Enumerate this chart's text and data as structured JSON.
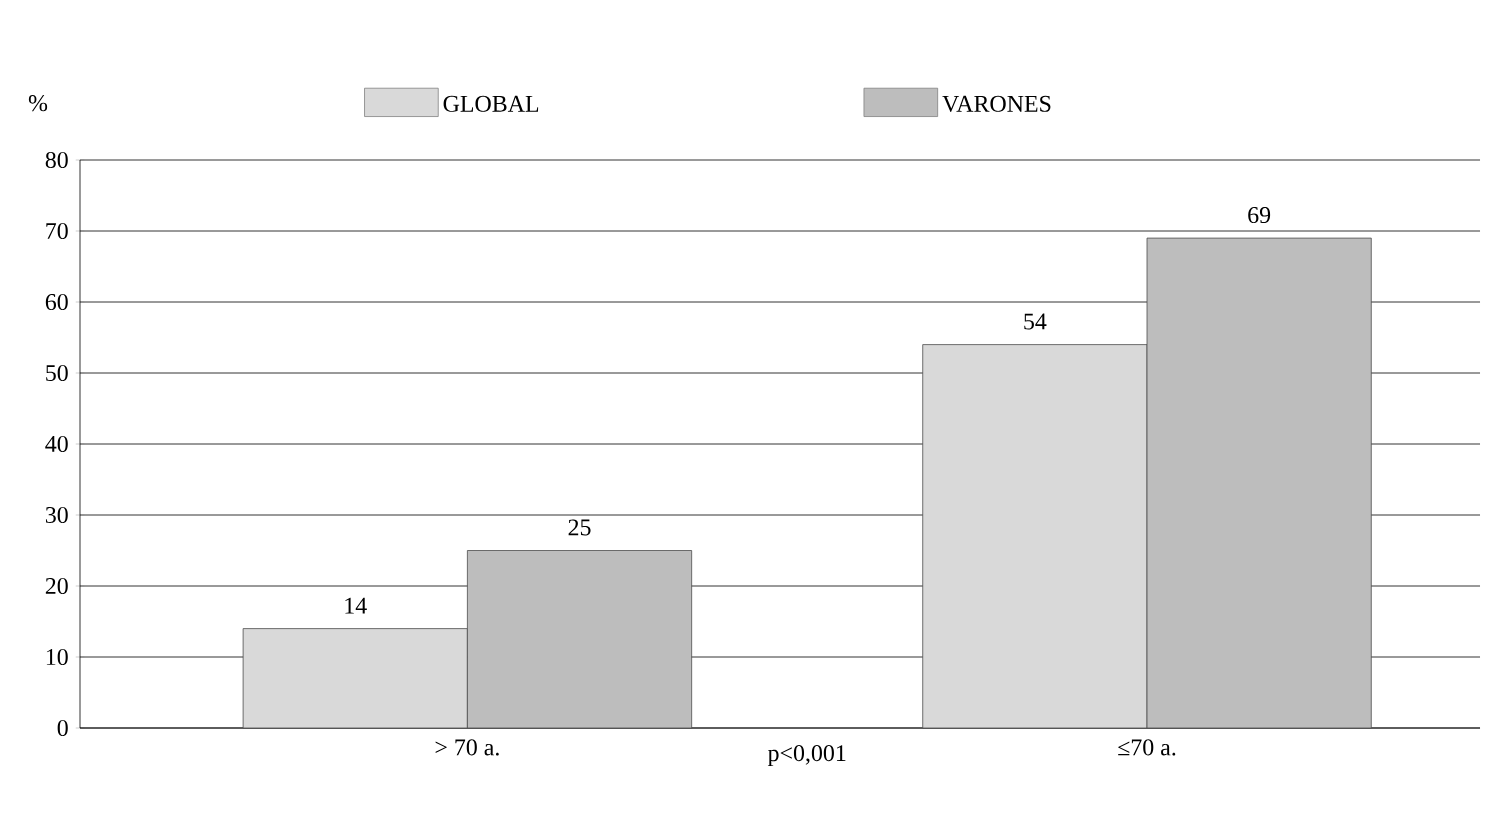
{
  "chart_data": {
    "type": "bar",
    "ylabel": "%",
    "categories": [
      "> 70 a.",
      "≤70 a."
    ],
    "series": [
      {
        "name": "GLOBAL",
        "color": "#d9d9d9",
        "values": [
          14,
          54
        ]
      },
      {
        "name": "VARONES",
        "color": "#bdbdbd",
        "values": [
          25,
          69
        ]
      }
    ],
    "ylim": [
      0,
      80
    ],
    "yticks": [
      0,
      10,
      20,
      30,
      40,
      50,
      60,
      70,
      80
    ],
    "grid": "y",
    "legend": "top",
    "data_labels": true,
    "annotations": [
      "p<0,001"
    ]
  }
}
